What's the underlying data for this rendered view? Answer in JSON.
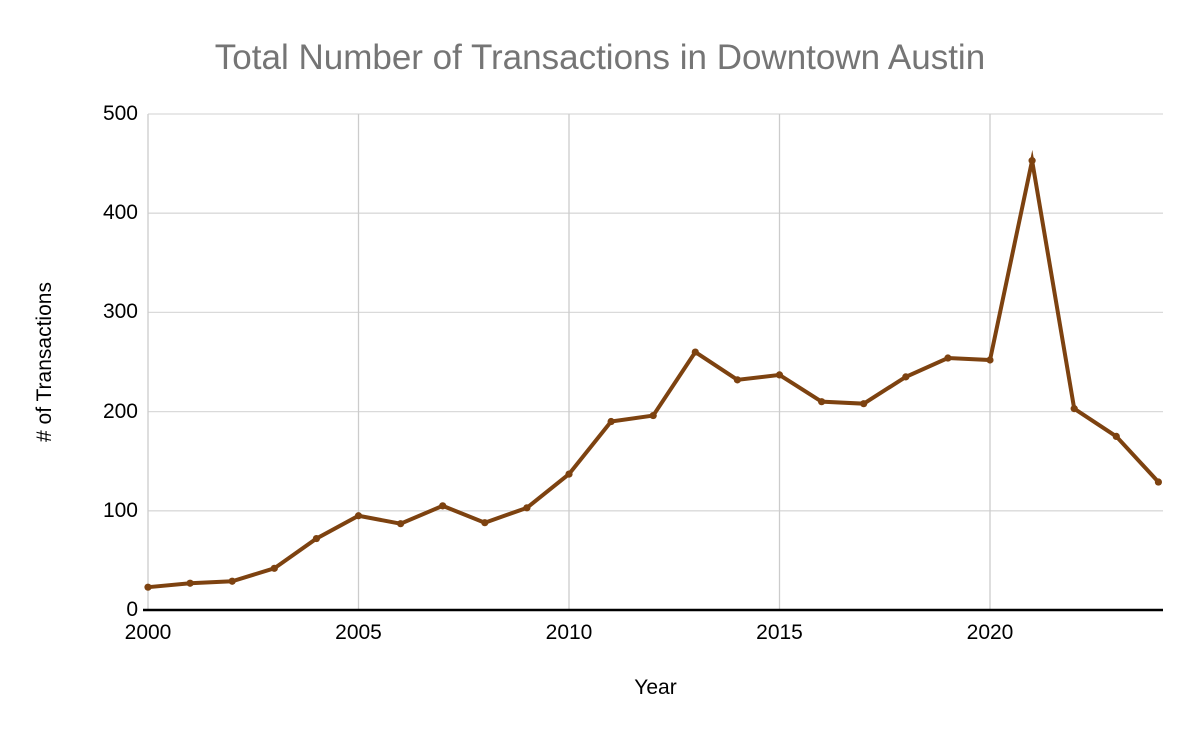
{
  "chart_data": {
    "type": "line",
    "title": "Total Number of Transactions in Downtown Austin",
    "xlabel": "Year",
    "ylabel": "# of Transactions",
    "x": [
      2000,
      2001,
      2002,
      2003,
      2004,
      2005,
      2006,
      2007,
      2008,
      2009,
      2010,
      2011,
      2012,
      2013,
      2014,
      2015,
      2016,
      2017,
      2018,
      2019,
      2020,
      2021,
      2022,
      2023,
      2024
    ],
    "series": [
      {
        "name": "# of Transactions",
        "values": [
          23,
          27,
          29,
          42,
          72,
          95,
          87,
          105,
          88,
          103,
          137,
          190,
          196,
          260,
          232,
          237,
          210,
          208,
          235,
          254,
          252,
          453,
          203,
          175,
          129
        ]
      }
    ],
    "xlim": [
      2000,
      2024.1
    ],
    "ylim": [
      0,
      500
    ],
    "x_ticks": [
      2000,
      2005,
      2010,
      2015,
      2020
    ],
    "y_ticks": [
      0,
      100,
      200,
      300,
      400,
      500
    ],
    "grid": true,
    "legend": "none",
    "colors": {
      "line": "#7d4210",
      "marker": "#7d4210",
      "title": "#757575",
      "axis_text": "#000000",
      "h_gridline": "#dadada",
      "v_gridline": "#cccccc",
      "axis_line": "#000000",
      "background": "#ffffff"
    }
  }
}
